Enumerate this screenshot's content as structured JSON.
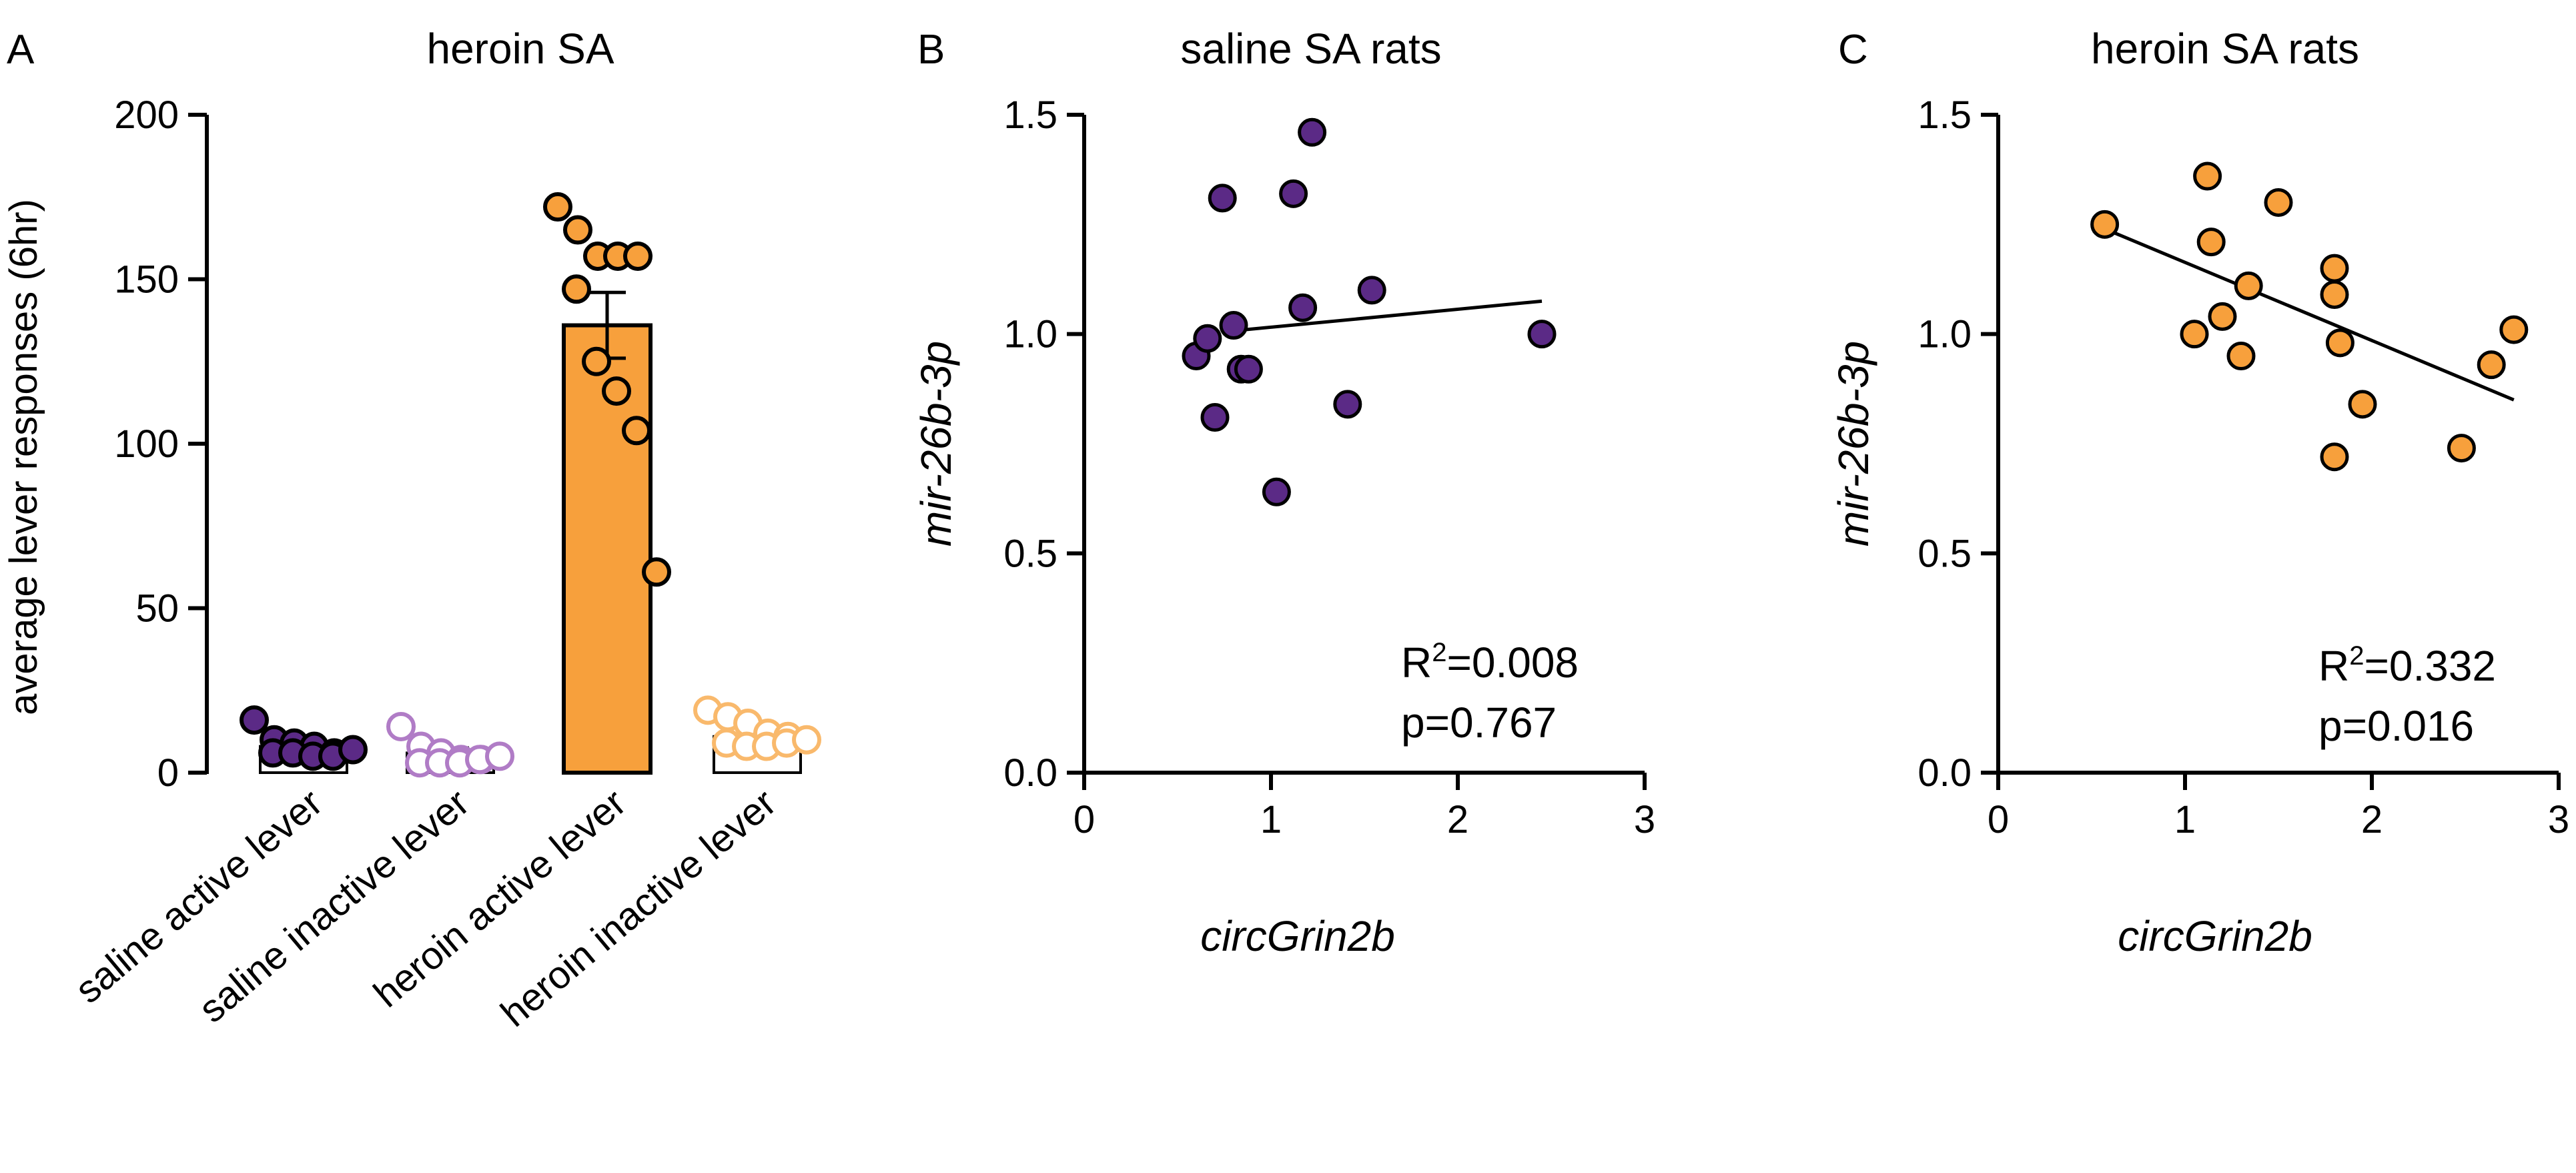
{
  "chart_data": [
    {
      "panel": "A",
      "type": "bar",
      "title": "heroin SA",
      "ylabel": "average lever responses (6hr)",
      "xlabel": "",
      "ylim": [
        0,
        200
      ],
      "yticks": [
        0,
        50,
        100,
        150,
        200
      ],
      "categories": [
        "saline active lever",
        "saline inactive lever",
        "heroin active lever",
        "heroin inactive lever"
      ],
      "means": [
        8,
        6,
        136,
        11
      ],
      "sem": [
        1.5,
        1.5,
        10,
        1.5
      ],
      "points": [
        [
          16,
          10,
          9,
          8,
          6,
          6,
          6,
          5,
          5,
          7
        ],
        [
          14,
          8,
          6,
          4,
          4,
          3,
          3,
          3,
          4,
          5
        ],
        [
          172,
          165,
          157,
          157,
          157,
          147,
          125,
          116,
          104,
          61
        ],
        [
          19,
          17,
          15,
          12,
          11,
          9,
          8,
          8,
          9,
          10
        ]
      ],
      "colors": {
        "saline": "#5b2a86",
        "saline_light": "#b07cc6",
        "heroin": "#f7a03c",
        "heroin_light": "#f9b96c",
        "axis": "#000000"
      }
    },
    {
      "panel": "B",
      "type": "scatter",
      "title": "saline SA rats",
      "xlabel": "circGrin2b",
      "ylabel": "mir-26b-3p",
      "xlim": [
        0,
        3
      ],
      "ylim": [
        0,
        1.5
      ],
      "xticks": [
        0,
        1,
        2,
        3
      ],
      "yticks": [
        "0.0",
        "0.5",
        "1.0",
        "1.5"
      ],
      "x": [
        0.6,
        0.66,
        0.7,
        0.74,
        0.8,
        0.84,
        0.88,
        1.03,
        1.12,
        1.17,
        1.22,
        1.41,
        1.54,
        2.45
      ],
      "y": [
        0.95,
        0.99,
        0.81,
        1.31,
        1.02,
        0.92,
        0.92,
        0.64,
        1.32,
        1.06,
        1.46,
        0.84,
        1.1,
        1.0
      ],
      "fit_line": {
        "x": [
          0.74,
          2.45
        ],
        "y": [
          1.005,
          1.075
        ]
      },
      "r2_prefix": "R",
      "r2_sup": "2",
      "r2_value": "=0.008",
      "p": "p=0.767",
      "color": "#5b2a86"
    },
    {
      "panel": "C",
      "type": "scatter",
      "title": "heroin SA rats",
      "xlabel": "circGrin2b",
      "ylabel": "mir-26b-3p",
      "xlim": [
        0,
        3
      ],
      "ylim": [
        0,
        1.5
      ],
      "xticks": [
        0,
        1,
        2,
        3
      ],
      "yticks": [
        "0.0",
        "0.5",
        "1.0",
        "1.5"
      ],
      "x": [
        0.57,
        1.05,
        1.12,
        1.14,
        1.2,
        1.3,
        1.34,
        1.5,
        1.8,
        1.8,
        1.8,
        1.83,
        1.95,
        2.48,
        2.64,
        2.76
      ],
      "y": [
        1.25,
        1.0,
        1.36,
        1.21,
        1.04,
        0.95,
        1.11,
        1.3,
        1.15,
        1.09,
        0.72,
        0.98,
        0.84,
        0.74,
        0.93,
        1.01
      ],
      "fit_line": {
        "x": [
          0.57,
          2.76
        ],
        "y": [
          1.24,
          0.85
        ]
      },
      "r2_prefix": "R",
      "r2_sup": "2",
      "r2_value": "=0.332",
      "p": "p=0.016",
      "color": "#f7a03c"
    }
  ]
}
